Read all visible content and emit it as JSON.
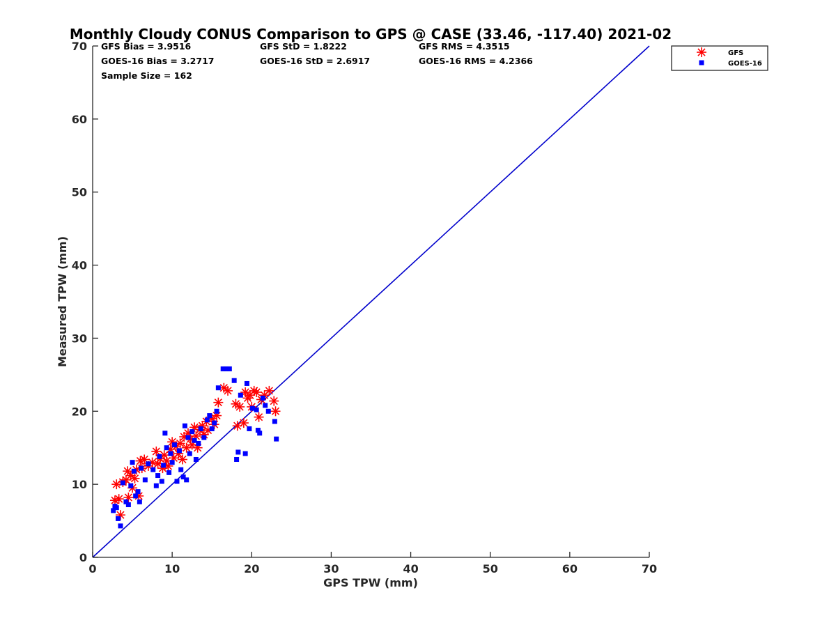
{
  "chart_data": {
    "type": "scatter",
    "title": "Monthly Cloudy CONUS Comparison to GPS @ CASE (33.46, -117.40) 2021-02",
    "xlabel": "GPS TPW (mm)",
    "ylabel": "Measured TPW (mm)",
    "xlim": [
      0,
      70
    ],
    "ylim": [
      0,
      70
    ],
    "xticks": [
      "0",
      "10",
      "20",
      "30",
      "40",
      "50",
      "60",
      "70"
    ],
    "yticks": [
      "0",
      "10",
      "20",
      "30",
      "40",
      "50",
      "60",
      "70"
    ],
    "grid": false,
    "legend_position": "top-right",
    "stats": [
      "GFS Bias = 3.9516",
      "GFS StD = 1.8222",
      "GFS RMS = 4.3515",
      "GOES-16 Bias = 3.2717",
      "GOES-16 StD = 2.6917",
      "GOES-16 RMS = 4.2366",
      "Sample Size = 162"
    ],
    "reference_line": {
      "x": [
        0,
        70
      ],
      "y": [
        0,
        70
      ],
      "color": "#0000cc"
    },
    "series": [
      {
        "name": "GFS",
        "marker": "asterisk",
        "color": "#ff0000",
        "points": [
          [
            2.8,
            7.8
          ],
          [
            3.0,
            10.0
          ],
          [
            3.3,
            8.0
          ],
          [
            3.5,
            5.8
          ],
          [
            3.8,
            10.3
          ],
          [
            4.2,
            10.6
          ],
          [
            4.4,
            11.8
          ],
          [
            4.5,
            8.2
          ],
          [
            4.8,
            11.2
          ],
          [
            5.0,
            9.5
          ],
          [
            5.3,
            10.8
          ],
          [
            5.5,
            12.0
          ],
          [
            5.8,
            8.4
          ],
          [
            6.0,
            13.2
          ],
          [
            6.2,
            12.2
          ],
          [
            6.5,
            13.4
          ],
          [
            7.0,
            12.5
          ],
          [
            7.5,
            13.0
          ],
          [
            8.0,
            14.5
          ],
          [
            8.2,
            12.8
          ],
          [
            8.5,
            13.5
          ],
          [
            8.8,
            12.2
          ],
          [
            9.0,
            14.0
          ],
          [
            9.3,
            13.2
          ],
          [
            9.5,
            12.5
          ],
          [
            9.8,
            14.8
          ],
          [
            10.0,
            15.8
          ],
          [
            10.2,
            13.6
          ],
          [
            10.5,
            15.2
          ],
          [
            10.8,
            14.2
          ],
          [
            11.0,
            15.6
          ],
          [
            11.3,
            13.4
          ],
          [
            11.5,
            16.5
          ],
          [
            11.8,
            15.0
          ],
          [
            12.0,
            17.0
          ],
          [
            12.3,
            16.2
          ],
          [
            12.5,
            15.4
          ],
          [
            12.8,
            17.8
          ],
          [
            13.0,
            16.6
          ],
          [
            13.2,
            15.0
          ],
          [
            13.5,
            17.5
          ],
          [
            13.8,
            18.0
          ],
          [
            14.0,
            16.8
          ],
          [
            14.3,
            18.6
          ],
          [
            14.5,
            17.4
          ],
          [
            15.0,
            19.0
          ],
          [
            15.3,
            18.2
          ],
          [
            15.6,
            19.4
          ],
          [
            15.8,
            21.2
          ],
          [
            16.5,
            23.2
          ],
          [
            17.0,
            22.8
          ],
          [
            18.0,
            21.0
          ],
          [
            18.2,
            18.0
          ],
          [
            18.5,
            20.6
          ],
          [
            19.0,
            18.4
          ],
          [
            19.2,
            22.6
          ],
          [
            19.5,
            21.8
          ],
          [
            19.8,
            22.2
          ],
          [
            20.0,
            20.6
          ],
          [
            20.3,
            22.8
          ],
          [
            20.6,
            22.6
          ],
          [
            20.9,
            19.2
          ],
          [
            21.2,
            21.6
          ],
          [
            21.6,
            22.2
          ],
          [
            22.2,
            22.8
          ],
          [
            22.8,
            21.4
          ],
          [
            23.0,
            20.0
          ]
        ]
      },
      {
        "name": "GOES-16",
        "marker": "square",
        "color": "#0000ff",
        "points": [
          [
            2.6,
            6.4
          ],
          [
            2.8,
            7.0
          ],
          [
            3.0,
            6.8
          ],
          [
            3.2,
            5.3
          ],
          [
            3.5,
            4.3
          ],
          [
            3.8,
            10.2
          ],
          [
            4.2,
            7.6
          ],
          [
            4.5,
            7.2
          ],
          [
            4.8,
            9.8
          ],
          [
            5.0,
            13.0
          ],
          [
            5.2,
            11.8
          ],
          [
            5.4,
            8.4
          ],
          [
            5.7,
            9.0
          ],
          [
            5.9,
            7.6
          ],
          [
            6.1,
            12.2
          ],
          [
            6.6,
            10.6
          ],
          [
            7.0,
            12.8
          ],
          [
            7.6,
            12.0
          ],
          [
            8.0,
            9.8
          ],
          [
            8.2,
            11.2
          ],
          [
            8.4,
            13.8
          ],
          [
            8.7,
            10.4
          ],
          [
            8.9,
            12.6
          ],
          [
            9.1,
            17.0
          ],
          [
            9.3,
            15.0
          ],
          [
            9.6,
            11.6
          ],
          [
            9.8,
            14.2
          ],
          [
            10.0,
            13.0
          ],
          [
            10.3,
            15.4
          ],
          [
            10.6,
            10.4
          ],
          [
            10.9,
            14.6
          ],
          [
            11.1,
            12.0
          ],
          [
            11.4,
            11.0
          ],
          [
            11.6,
            18.0
          ],
          [
            11.8,
            10.6
          ],
          [
            12.0,
            16.4
          ],
          [
            12.2,
            14.2
          ],
          [
            12.5,
            17.2
          ],
          [
            12.8,
            16.0
          ],
          [
            13.0,
            13.4
          ],
          [
            13.3,
            15.6
          ],
          [
            13.6,
            17.6
          ],
          [
            14.0,
            16.4
          ],
          [
            14.4,
            18.8
          ],
          [
            14.7,
            19.4
          ],
          [
            15.0,
            17.6
          ],
          [
            15.3,
            18.4
          ],
          [
            15.6,
            20.0
          ],
          [
            15.8,
            23.2
          ],
          [
            16.4,
            25.8
          ],
          [
            16.8,
            25.8
          ],
          [
            17.2,
            25.8
          ],
          [
            17.8,
            24.2
          ],
          [
            18.1,
            13.4
          ],
          [
            18.3,
            14.4
          ],
          [
            18.6,
            22.2
          ],
          [
            19.2,
            14.2
          ],
          [
            19.4,
            23.8
          ],
          [
            19.7,
            17.6
          ],
          [
            20.1,
            20.4
          ],
          [
            20.6,
            20.2
          ],
          [
            20.8,
            17.4
          ],
          [
            21.0,
            17.0
          ],
          [
            21.4,
            21.8
          ],
          [
            21.7,
            20.8
          ],
          [
            22.1,
            20.0
          ],
          [
            22.9,
            18.6
          ],
          [
            23.1,
            16.2
          ]
        ]
      }
    ]
  }
}
